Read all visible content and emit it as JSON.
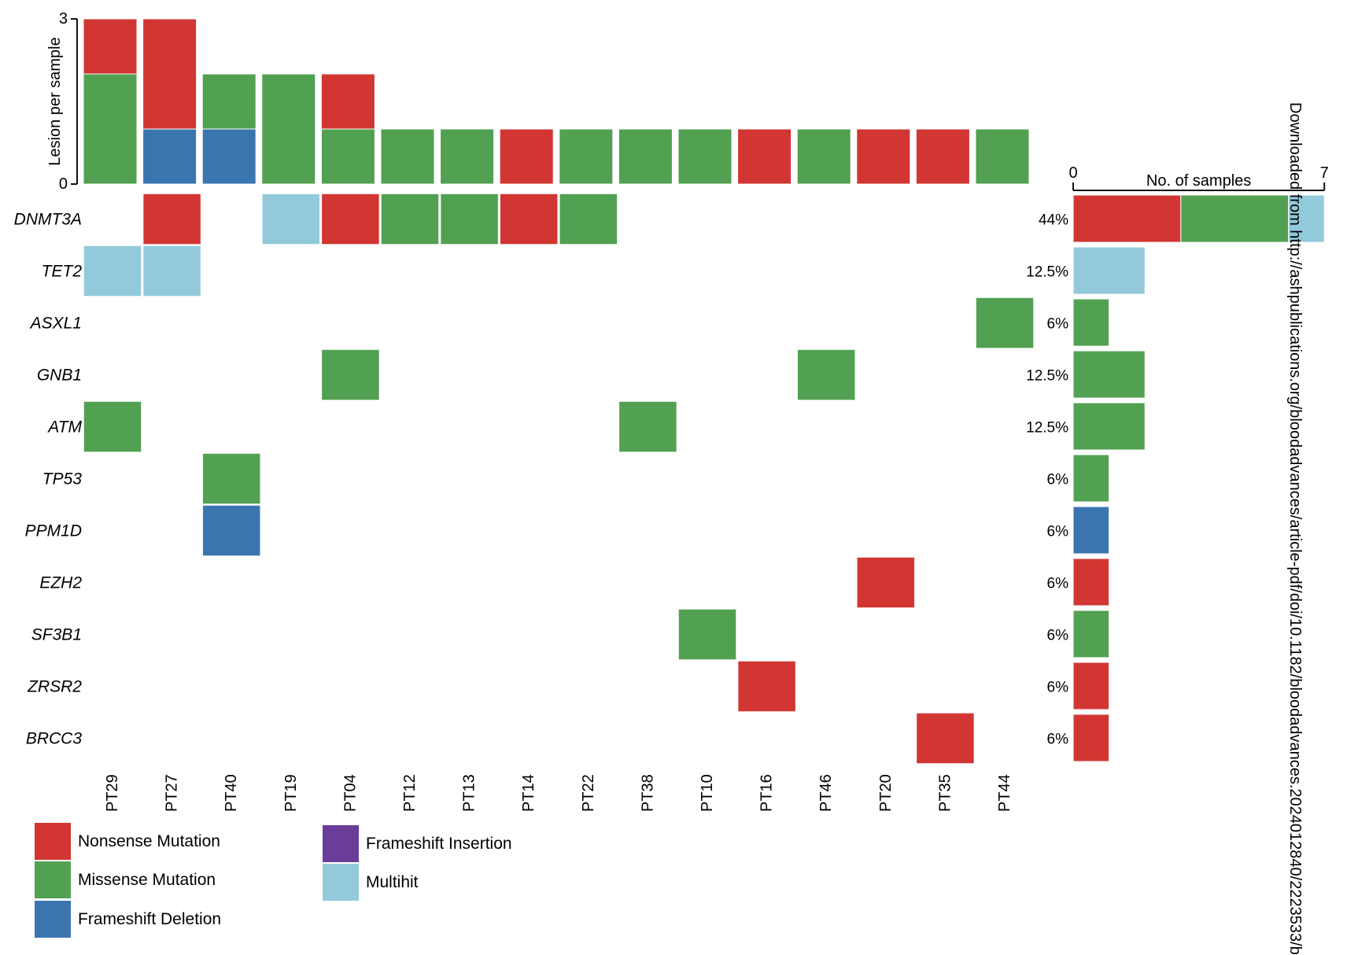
{
  "chart_data": {
    "type": "oncoplot",
    "samples": [
      "PT29",
      "PT27",
      "PT40",
      "PT19",
      "PT04",
      "PT12",
      "PT13",
      "PT14",
      "PT22",
      "PT38",
      "PT10",
      "PT16",
      "PT46",
      "PT20",
      "PT35",
      "PT44"
    ],
    "genes": [
      {
        "name": "DNMT3A",
        "pct": "44%"
      },
      {
        "name": "TET2",
        "pct": "12.5%"
      },
      {
        "name": "ASXL1",
        "pct": "6%"
      },
      {
        "name": "GNB1",
        "pct": "12.5%"
      },
      {
        "name": "ATM",
        "pct": "12.5%"
      },
      {
        "name": "TP53",
        "pct": "6%"
      },
      {
        "name": "PPM1D",
        "pct": "6%"
      },
      {
        "name": "EZH2",
        "pct": "6%"
      },
      {
        "name": "SF3B1",
        "pct": "6%"
      },
      {
        "name": "ZRSR2",
        "pct": "6%"
      },
      {
        "name": "BRCC3",
        "pct": "6%"
      }
    ],
    "mutation_types": [
      {
        "key": "nonsense",
        "label": "Nonsense Mutation",
        "color": "#d13632"
      },
      {
        "key": "missense",
        "label": "Missense Mutation",
        "color": "#52a052"
      },
      {
        "key": "frameshift_del",
        "label": "Frameshift Deletion",
        "color": "#3b75b0"
      },
      {
        "key": "frameshift_ins",
        "label": "Frameshift Insertion",
        "color": "#6a3d98"
      },
      {
        "key": "multihit",
        "label": "Multihit",
        "color": "#92cadb"
      }
    ],
    "cells": [
      {
        "gene": "DNMT3A",
        "sample": "PT27",
        "type": "nonsense"
      },
      {
        "gene": "DNMT3A",
        "sample": "PT19",
        "type": "multihit"
      },
      {
        "gene": "DNMT3A",
        "sample": "PT04",
        "type": "nonsense"
      },
      {
        "gene": "DNMT3A",
        "sample": "PT12",
        "type": "missense"
      },
      {
        "gene": "DNMT3A",
        "sample": "PT13",
        "type": "missense"
      },
      {
        "gene": "DNMT3A",
        "sample": "PT14",
        "type": "nonsense"
      },
      {
        "gene": "DNMT3A",
        "sample": "PT22",
        "type": "missense"
      },
      {
        "gene": "TET2",
        "sample": "PT29",
        "type": "multihit"
      },
      {
        "gene": "TET2",
        "sample": "PT27",
        "type": "multihit"
      },
      {
        "gene": "ASXL1",
        "sample": "PT44",
        "type": "missense"
      },
      {
        "gene": "GNB1",
        "sample": "PT04",
        "type": "missense"
      },
      {
        "gene": "GNB1",
        "sample": "PT46",
        "type": "missense"
      },
      {
        "gene": "ATM",
        "sample": "PT29",
        "type": "missense"
      },
      {
        "gene": "ATM",
        "sample": "PT38",
        "type": "missense"
      },
      {
        "gene": "TP53",
        "sample": "PT40",
        "type": "missense"
      },
      {
        "gene": "PPM1D",
        "sample": "PT40",
        "type": "frameshift_del"
      },
      {
        "gene": "EZH2",
        "sample": "PT20",
        "type": "nonsense"
      },
      {
        "gene": "SF3B1",
        "sample": "PT10",
        "type": "missense"
      },
      {
        "gene": "ZRSR2",
        "sample": "PT16",
        "type": "nonsense"
      },
      {
        "gene": "BRCC3",
        "sample": "PT35",
        "type": "nonsense"
      }
    ],
    "top_bars": {
      "ylabel": "Lesion per sample",
      "ylim": [
        0,
        3
      ],
      "tick_labels": [
        "0",
        "3"
      ],
      "stacks": [
        {
          "sample": "PT29",
          "segments": [
            {
              "type": "missense",
              "value": 2
            },
            {
              "type": "nonsense",
              "value": 1
            }
          ]
        },
        {
          "sample": "PT27",
          "segments": [
            {
              "type": "frameshift_del",
              "value": 1
            },
            {
              "type": "nonsense",
              "value": 2
            }
          ]
        },
        {
          "sample": "PT40",
          "segments": [
            {
              "type": "frameshift_del",
              "value": 1
            },
            {
              "type": "missense",
              "value": 1
            }
          ]
        },
        {
          "sample": "PT19",
          "segments": [
            {
              "type": "missense",
              "value": 2
            }
          ]
        },
        {
          "sample": "PT04",
          "segments": [
            {
              "type": "missense",
              "value": 1
            },
            {
              "type": "nonsense",
              "value": 1
            }
          ]
        },
        {
          "sample": "PT12",
          "segments": [
            {
              "type": "missense",
              "value": 1
            }
          ]
        },
        {
          "sample": "PT13",
          "segments": [
            {
              "type": "missense",
              "value": 1
            }
          ]
        },
        {
          "sample": "PT14",
          "segments": [
            {
              "type": "nonsense",
              "value": 1
            }
          ]
        },
        {
          "sample": "PT22",
          "segments": [
            {
              "type": "missense",
              "value": 1
            }
          ]
        },
        {
          "sample": "PT38",
          "segments": [
            {
              "type": "missense",
              "value": 1
            }
          ]
        },
        {
          "sample": "PT10",
          "segments": [
            {
              "type": "missense",
              "value": 1
            }
          ]
        },
        {
          "sample": "PT16",
          "segments": [
            {
              "type": "nonsense",
              "value": 1
            }
          ]
        },
        {
          "sample": "PT46",
          "segments": [
            {
              "type": "missense",
              "value": 1
            }
          ]
        },
        {
          "sample": "PT20",
          "segments": [
            {
              "type": "nonsense",
              "value": 1
            }
          ]
        },
        {
          "sample": "PT35",
          "segments": [
            {
              "type": "nonsense",
              "value": 1
            }
          ]
        },
        {
          "sample": "PT44",
          "segments": [
            {
              "type": "missense",
              "value": 1
            }
          ]
        }
      ]
    },
    "side_bars": {
      "xlabel": "No. of samples",
      "xlim": [
        0,
        7
      ],
      "tick_labels": [
        "0",
        "7"
      ],
      "bars": [
        {
          "gene": "DNMT3A",
          "segments": [
            {
              "type": "nonsense",
              "value": 3
            },
            {
              "type": "missense",
              "value": 3
            },
            {
              "type": "multihit",
              "value": 1
            }
          ]
        },
        {
          "gene": "TET2",
          "segments": [
            {
              "type": "multihit",
              "value": 2
            }
          ]
        },
        {
          "gene": "ASXL1",
          "segments": [
            {
              "type": "missense",
              "value": 1
            }
          ]
        },
        {
          "gene": "GNB1",
          "segments": [
            {
              "type": "missense",
              "value": 2
            }
          ]
        },
        {
          "gene": "ATM",
          "segments": [
            {
              "type": "missense",
              "value": 2
            }
          ]
        },
        {
          "gene": "TP53",
          "segments": [
            {
              "type": "missense",
              "value": 1
            }
          ]
        },
        {
          "gene": "PPM1D",
          "segments": [
            {
              "type": "frameshift_del",
              "value": 1
            }
          ]
        },
        {
          "gene": "EZH2",
          "segments": [
            {
              "type": "nonsense",
              "value": 1
            }
          ]
        },
        {
          "gene": "SF3B1",
          "segments": [
            {
              "type": "missense",
              "value": 1
            }
          ]
        },
        {
          "gene": "ZRSR2",
          "segments": [
            {
              "type": "nonsense",
              "value": 1
            }
          ]
        },
        {
          "gene": "BRCC3",
          "segments": [
            {
              "type": "nonsense",
              "value": 1
            }
          ]
        }
      ]
    },
    "legend_placement": "bottom-left",
    "watermark": "Downloaded from http://ashpublications.org/bloodadvances/article-pdf/doi/10.1182/bloodadvances.2024012840/2223533/b"
  }
}
